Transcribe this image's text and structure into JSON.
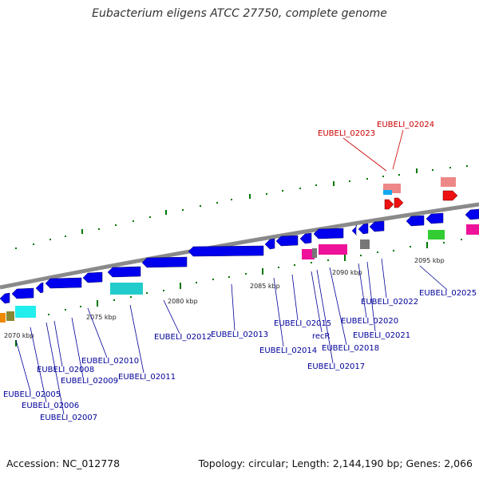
{
  "header": {
    "title": "Eubacterium eligens ATCC 27750, complete genome"
  },
  "footer": {
    "accession": "Accession: NC_012778",
    "summary": "Topology: circular; Length: 2,144,190 bp; Genes: 2,066"
  },
  "colors": {
    "backbone": "#8a8a8a",
    "gene_default": "#0000ee",
    "highlight": "#cc0000",
    "label_default": "#000099",
    "tick_minor": "#007700",
    "magenta": "#ee1199",
    "cyan": "#22cccc",
    "green": "#33cc33",
    "pink": "#ee8888",
    "gray": "#777777",
    "red": "#ee1111"
  },
  "scale_ticks": [
    "2070 kbp",
    "2075 kbp",
    "2080 kbp",
    "2085 kbp",
    "2090 kbp",
    "2095 kbp"
  ],
  "gene_labels": [
    {
      "text": "EUBELI_02005",
      "highlight": false
    },
    {
      "text": "EUBELI_02006",
      "highlight": false
    },
    {
      "text": "EUBELI_02007",
      "highlight": false
    },
    {
      "text": "EUBELI_02008",
      "highlight": false
    },
    {
      "text": "EUBELI_02009",
      "highlight": false
    },
    {
      "text": "EUBELI_02010",
      "highlight": false
    },
    {
      "text": "EUBELI_02011",
      "highlight": false
    },
    {
      "text": "EUBELI_02012",
      "highlight": false
    },
    {
      "text": "EUBELI_02013",
      "highlight": false
    },
    {
      "text": "EUBELI_02014",
      "highlight": false
    },
    {
      "text": "EUBELI_02015",
      "highlight": false
    },
    {
      "text": "recR",
      "highlight": false
    },
    {
      "text": "EUBELI_02017",
      "highlight": false
    },
    {
      "text": "EUBELI_02018",
      "highlight": false
    },
    {
      "text": "EUBELI_02020",
      "highlight": false
    },
    {
      "text": "EUBELI_02021",
      "highlight": false
    },
    {
      "text": "EUBELI_02022",
      "highlight": false
    },
    {
      "text": "EUBELI_02023",
      "highlight": true
    },
    {
      "text": "EUBELI_02024",
      "highlight": true
    },
    {
      "text": "EUBELI_02025",
      "highlight": false
    }
  ]
}
